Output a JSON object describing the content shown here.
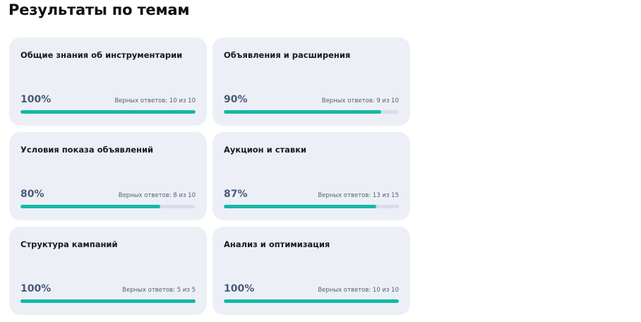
{
  "page": {
    "title": "Результаты по темам"
  },
  "topics": [
    {
      "name": "Общие знания об инструментарии",
      "percent": "100%",
      "answers": "Верных ответов: 10 из 10",
      "progress": 1.0
    },
    {
      "name": "Объявления и расширения",
      "percent": "90%",
      "answers": "Верных ответов: 9 из 10",
      "progress": 0.9
    },
    {
      "name": "Условия показа объявлений",
      "percent": "80%",
      "answers": "Верных ответов: 8 из 10",
      "progress": 0.8
    },
    {
      "name": "Аукцион и ставки",
      "percent": "87%",
      "answers": "Верных ответов: 13 из 15",
      "progress": 0.87
    },
    {
      "name": "Структура кампаний",
      "percent": "100%",
      "answers": "Верных ответов: 5 из 5",
      "progress": 1.0
    },
    {
      "name": "Анализ и оптимизация",
      "percent": "100%",
      "answers": "Верных ответов: 10 из 10",
      "progress": 1.0
    }
  ],
  "colors": {
    "card_background": "#eceff6",
    "progress_fill": "#14b8a6",
    "progress_track": "#d9dde7",
    "percent_text": "#4a5a78"
  }
}
